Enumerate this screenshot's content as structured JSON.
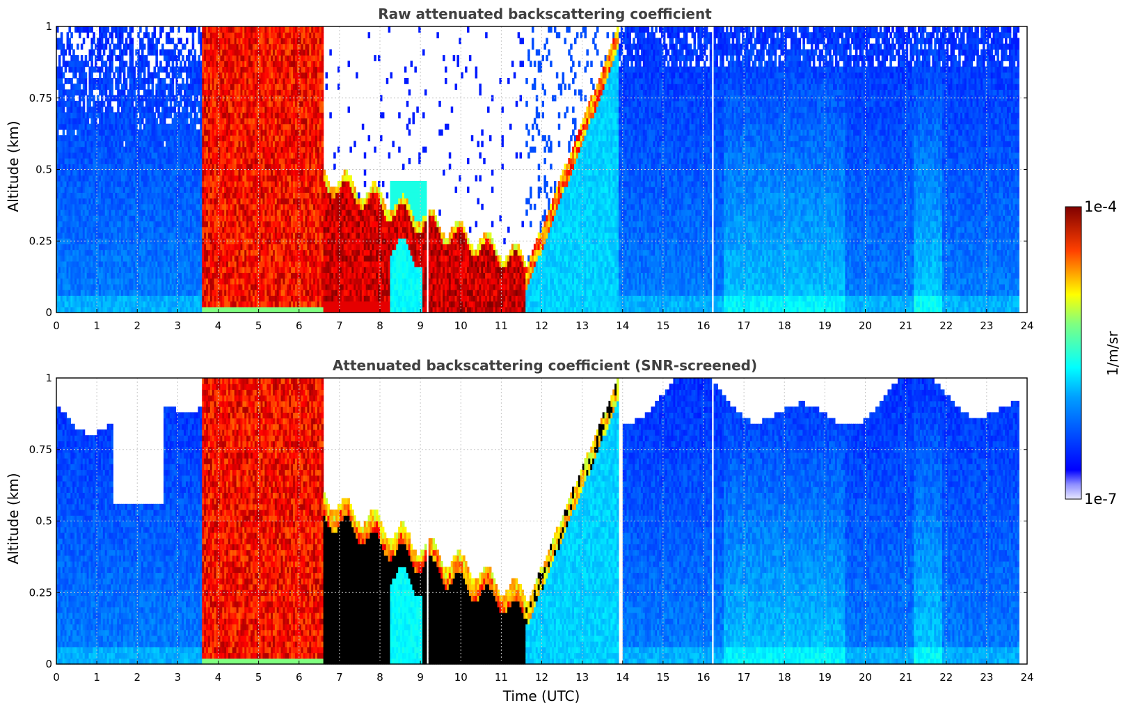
{
  "chart_data": [
    {
      "type": "heatmap",
      "title": "Raw attenuated backscattering coefficient",
      "xlabel": "",
      "ylabel": "Altitude (km)",
      "xlim": [
        0,
        24
      ],
      "ylim": [
        0,
        1
      ],
      "x_ticks": [
        "0",
        "1",
        "2",
        "3",
        "4",
        "5",
        "6",
        "7",
        "8",
        "9",
        "10",
        "11",
        "12",
        "13",
        "14",
        "15",
        "16",
        "17",
        "18",
        "19",
        "20",
        "21",
        "22",
        "23",
        "24"
      ],
      "y_ticks": [
        "0",
        "0.25",
        "0.5",
        "0.75",
        "1"
      ],
      "grid": true,
      "data_coverage_hours": [
        0,
        23.8
      ],
      "colorbar": {
        "label": "1/m/sr",
        "min": "1e-7",
        "max": "1e-4",
        "scale": "log",
        "colormap": "jet"
      },
      "features": [
        {
          "name": "background",
          "t_start": 0,
          "t_end": 23.8,
          "alt_top": 1.0,
          "level": "~1e-6 (blue)"
        },
        {
          "name": "dense-column",
          "t_start": 3.55,
          "t_end": 6.55,
          "alt_top": 1.0,
          "level": "~3e-5 to 1e-4 (red)"
        },
        {
          "name": "descending-layer",
          "t_start": 6.55,
          "t_end": 11.6,
          "alt_top_start": 0.45,
          "alt_top_end": 0.15,
          "level": "~5e-5 to 1e-4 (dark red)"
        },
        {
          "name": "rising-layer",
          "t_start": 11.6,
          "t_end": 13.9,
          "alt_top_start": 0.15,
          "alt_top_end": 1.0,
          "level": "~1e-5 (orange)"
        },
        {
          "name": "gap",
          "t": 9.15
        },
        {
          "name": "gap",
          "t": 16.2
        }
      ]
    },
    {
      "type": "heatmap",
      "title": "Attenuated backscattering coefficient (SNR-screened)",
      "xlabel": "Time (UTC)",
      "ylabel": "Altitude (km)",
      "xlim": [
        0,
        24
      ],
      "ylim": [
        0,
        1
      ],
      "x_ticks": [
        "0",
        "1",
        "2",
        "3",
        "4",
        "5",
        "6",
        "7",
        "8",
        "9",
        "10",
        "11",
        "12",
        "13",
        "14",
        "15",
        "16",
        "17",
        "18",
        "19",
        "20",
        "21",
        "22",
        "23",
        "24"
      ],
      "y_ticks": [
        "0",
        "0.25",
        "0.5",
        "0.75",
        "1"
      ],
      "grid": true,
      "data_coverage_hours": [
        0,
        23.8
      ],
      "colorbar": {
        "label": "1/m/sr",
        "min": "1e-7",
        "max": "1e-4",
        "scale": "log",
        "colormap": "jet"
      },
      "features": [
        {
          "name": "background",
          "t_start": 0,
          "t_end": 23.8,
          "alt_top": 0.9,
          "level": "~1e-6 (blue)"
        },
        {
          "name": "dense-column",
          "t_start": 3.55,
          "t_end": 6.55,
          "alt_top": 1.0,
          "level": "~3e-5 to 1e-4 (red)"
        },
        {
          "name": "descending-layer",
          "t_start": 6.55,
          "t_end": 11.6,
          "alt_top_start": 0.55,
          "alt_top_end": 0.2,
          "level": "above range (black)"
        },
        {
          "name": "rising-layer",
          "t_start": 11.6,
          "t_end": 13.9,
          "alt_top_start": 0.2,
          "alt_top_end": 1.0,
          "level": "above range (black edges)"
        },
        {
          "name": "gap",
          "t": 9.15
        },
        {
          "name": "gap",
          "t": 16.2
        }
      ]
    }
  ],
  "colorbar": {
    "max_label": "1e-4",
    "min_label": "1e-7",
    "unit_label": "1/m/sr"
  }
}
